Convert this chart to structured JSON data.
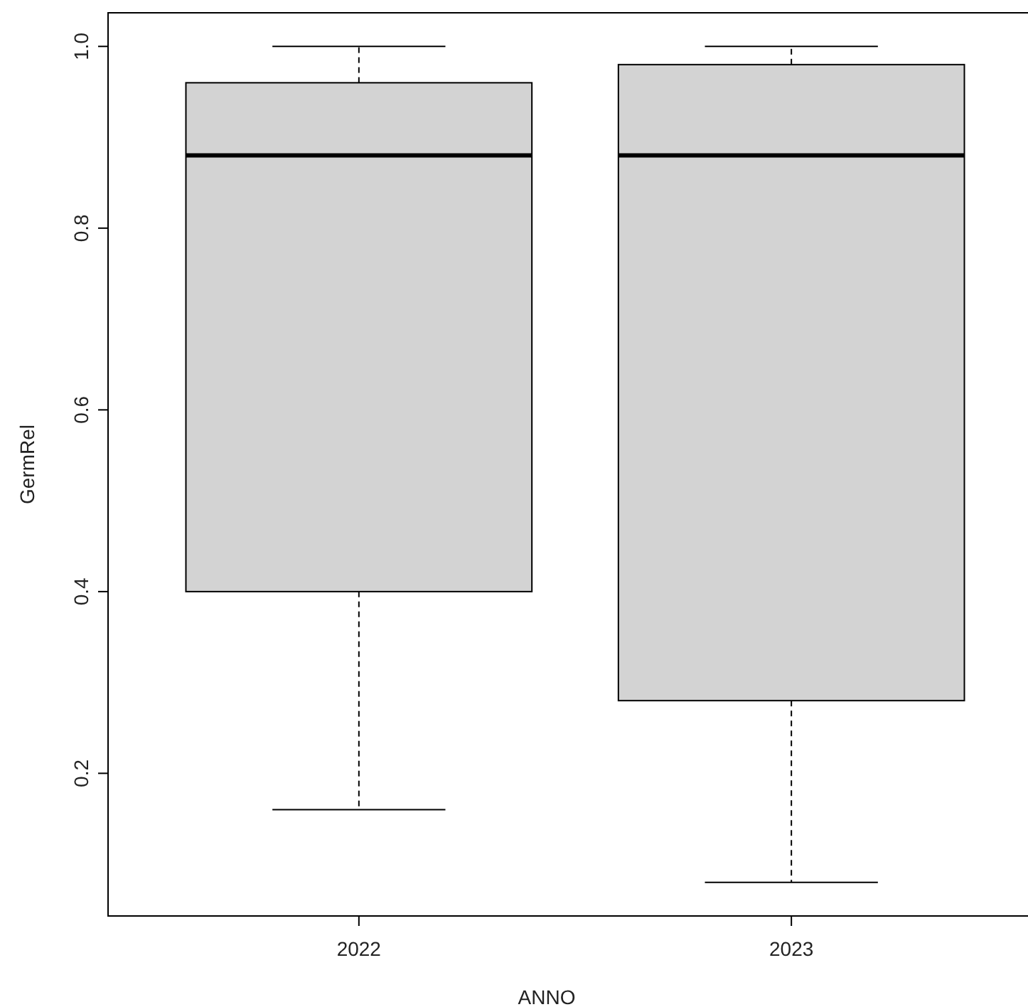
{
  "chart_data": {
    "type": "box",
    "xlabel": "ANNO",
    "ylabel": "GermRel",
    "categories": [
      "2022",
      "2023"
    ],
    "color": "#d3d3d3",
    "boxes": [
      {
        "low": 0.16,
        "q1": 0.4,
        "median": 0.88,
        "q3": 0.96,
        "high": 1.0
      },
      {
        "low": 0.08,
        "q1": 0.28,
        "median": 0.88,
        "q3": 0.98,
        "high": 1.0
      }
    ],
    "ylim": [
      0.043,
      1.037
    ],
    "yticks": [
      {
        "value": 0.2,
        "label": "0.2"
      },
      {
        "value": 0.4,
        "label": "0.4"
      },
      {
        "value": 0.6,
        "label": "0.6"
      },
      {
        "value": 0.8,
        "label": "0.8"
      },
      {
        "value": 1.0,
        "label": "1.0"
      }
    ]
  }
}
